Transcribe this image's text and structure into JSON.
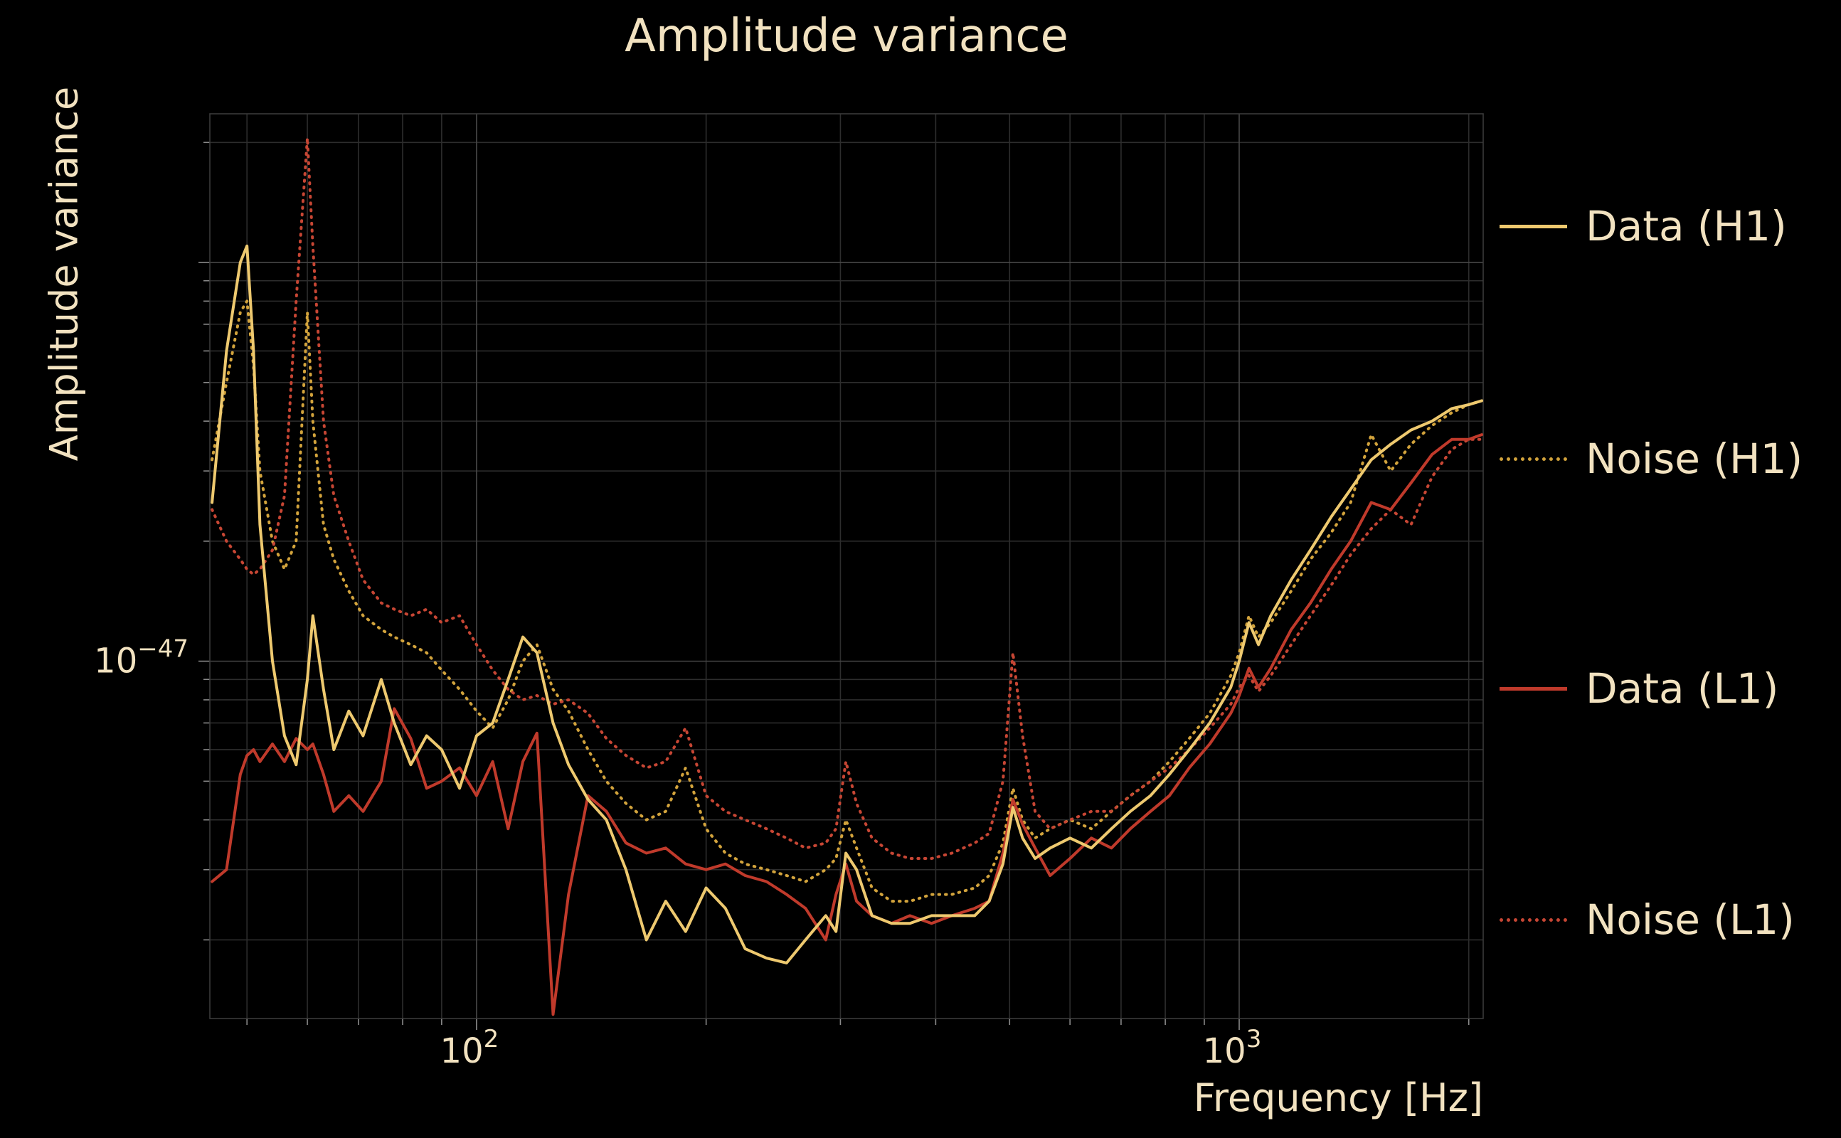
{
  "page": {
    "background": "#000000",
    "text_color": "#f2e2c0",
    "grid_major_color": "#474747",
    "grid_minor_color": "#2d2d2d",
    "tick_color": "#8a8a8a"
  },
  "chart_data": {
    "type": "line",
    "title": "Amplitude variance",
    "xlabel": "Frequency [Hz]",
    "ylabel": "Amplitude variance",
    "xscale": "log",
    "yscale": "log",
    "xlim": [
      44.7,
      2089
    ],
    "ylim": [
      1.27e-48,
      2.36e-46
    ],
    "grid": true,
    "legend_position": "right-outside",
    "xticks": [
      {
        "value": 100,
        "base": "10",
        "exp": "2"
      },
      {
        "value": 1000,
        "base": "10",
        "exp": "3"
      }
    ],
    "yticks": [
      {
        "value": 1e-47,
        "base": "10",
        "exp": "−47"
      }
    ],
    "x_minor_ticks": [
      50,
      60,
      70,
      80,
      90,
      200,
      300,
      400,
      500,
      600,
      700,
      800,
      900,
      2000
    ],
    "y_minor_mantissas": [
      2,
      3,
      4,
      5,
      6,
      7,
      8,
      9
    ],
    "y_decades": [
      -48,
      -47,
      -46
    ],
    "x": [
      45,
      47,
      49,
      50,
      51,
      52,
      54,
      56,
      58,
      60,
      61,
      63,
      65,
      68,
      71,
      75,
      78,
      82,
      86,
      90,
      95,
      100,
      105,
      110,
      115,
      120,
      126,
      132,
      140,
      148,
      157,
      167,
      177,
      188,
      200,
      212,
      225,
      240,
      255,
      270,
      287,
      296,
      305,
      315,
      330,
      350,
      370,
      395,
      420,
      450,
      470,
      490,
      505,
      520,
      540,
      565,
      600,
      640,
      680,
      720,
      765,
      810,
      860,
      915,
      975,
      1000,
      1030,
      1060,
      1100,
      1170,
      1240,
      1320,
      1400,
      1490,
      1580,
      1680,
      1790,
      1900,
      2000,
      2080
    ],
    "series": [
      {
        "name": "Noise (H1)",
        "color": "#d2a33c",
        "line": "dotted",
        "y": [
          3.2e-47,
          5e-47,
          7.5e-47,
          8e-47,
          5.5e-47,
          3e-47,
          2e-47,
          1.7e-47,
          2e-47,
          7.5e-47,
          4e-47,
          2.2e-47,
          1.8e-47,
          1.5e-47,
          1.3e-47,
          1.2e-47,
          1.15e-47,
          1.1e-47,
          1.05e-47,
          9.5e-48,
          8.5e-48,
          7.5e-48,
          6.8e-48,
          8e-48,
          1e-47,
          1.1e-47,
          8.5e-48,
          7.5e-48,
          6e-48,
          5e-48,
          4.4e-48,
          4e-48,
          4.2e-48,
          5.4e-48,
          3.8e-48,
          3.3e-48,
          3.1e-48,
          3e-48,
          2.9e-48,
          2.8e-48,
          3e-48,
          3.2e-48,
          4e-48,
          3.4e-48,
          2.7e-48,
          2.5e-48,
          2.5e-48,
          2.6e-48,
          2.6e-48,
          2.7e-48,
          2.9e-48,
          3.5e-48,
          4.8e-48,
          4e-48,
          3.6e-48,
          3.8e-48,
          4e-48,
          3.8e-48,
          4.2e-48,
          4.6e-48,
          5e-48,
          5.6e-48,
          6.4e-48,
          7.4e-48,
          9.2e-48,
          1.05e-47,
          1.3e-47,
          1.15e-47,
          1.25e-47,
          1.5e-47,
          1.8e-47,
          2.1e-47,
          2.5e-47,
          3.7e-47,
          3e-47,
          3.5e-47,
          3.9e-47,
          4.2e-47,
          4.4e-47,
          4.5e-47
        ]
      },
      {
        "name": "Noise (L1)",
        "color": "#c74634",
        "line": "dotted",
        "y": [
          2.4e-47,
          2e-47,
          1.8e-47,
          1.7e-47,
          1.65e-47,
          1.7e-47,
          1.9e-47,
          2.6e-47,
          8e-47,
          2.05e-46,
          1.1e-46,
          4e-47,
          2.6e-47,
          2e-47,
          1.6e-47,
          1.4e-47,
          1.35e-47,
          1.3e-47,
          1.35e-47,
          1.25e-47,
          1.3e-47,
          1.1e-47,
          9.5e-48,
          8.5e-48,
          8e-48,
          8.2e-48,
          7.8e-48,
          8e-48,
          7.4e-48,
          6.4e-48,
          5.8e-48,
          5.4e-48,
          5.6e-48,
          6.8e-48,
          4.6e-48,
          4.2e-48,
          4e-48,
          3.8e-48,
          3.6e-48,
          3.4e-48,
          3.5e-48,
          3.8e-48,
          5.6e-48,
          4.4e-48,
          3.6e-48,
          3.3e-48,
          3.2e-48,
          3.2e-48,
          3.3e-48,
          3.5e-48,
          3.7e-48,
          5e-48,
          1.05e-47,
          6.5e-48,
          4.2e-48,
          3.8e-48,
          4e-48,
          4.2e-48,
          4.2e-48,
          4.6e-48,
          5e-48,
          5.4e-48,
          6e-48,
          6.8e-48,
          7.8e-48,
          8.6e-48,
          9.2e-48,
          8.4e-48,
          9.2e-48,
          1.1e-47,
          1.3e-47,
          1.55e-47,
          1.85e-47,
          2.15e-47,
          2.4e-47,
          2.2e-47,
          2.9e-47,
          3.4e-47,
          3.6e-47,
          3.6e-47
        ]
      },
      {
        "name": "Data (L1)",
        "color": "#c03a2b",
        "line": "solid",
        "y": [
          2.8e-48,
          3e-48,
          5.2e-48,
          5.8e-48,
          6e-48,
          5.6e-48,
          6.2e-48,
          5.6e-48,
          6.4e-48,
          6e-48,
          6.2e-48,
          5.2e-48,
          4.2e-48,
          4.6e-48,
          4.2e-48,
          5e-48,
          7.6e-48,
          6.4e-48,
          4.8e-48,
          5e-48,
          5.4e-48,
          4.6e-48,
          5.6e-48,
          3.8e-48,
          5.6e-48,
          6.6e-48,
          1.3e-48,
          2.6e-48,
          4.6e-48,
          4.2e-48,
          3.5e-48,
          3.3e-48,
          3.4e-48,
          3.1e-48,
          3e-48,
          3.1e-48,
          2.9e-48,
          2.8e-48,
          2.6e-48,
          2.4e-48,
          2e-48,
          2.6e-48,
          3.1e-48,
          2.5e-48,
          2.3e-48,
          2.2e-48,
          2.3e-48,
          2.2e-48,
          2.3e-48,
          2.4e-48,
          2.5e-48,
          3.3e-48,
          4.5e-48,
          3.9e-48,
          3.4e-48,
          2.9e-48,
          3.2e-48,
          3.6e-48,
          3.4e-48,
          3.8e-48,
          4.2e-48,
          4.6e-48,
          5.4e-48,
          6.2e-48,
          7.4e-48,
          8.2e-48,
          9.6e-48,
          8.6e-48,
          9.6e-48,
          1.2e-47,
          1.4e-47,
          1.7e-47,
          2e-47,
          2.5e-47,
          2.4e-47,
          2.8e-47,
          3.3e-47,
          3.6e-47,
          3.6e-47,
          3.7e-47
        ]
      },
      {
        "name": "Data (H1)",
        "color": "#eec96f",
        "line": "solid",
        "y": [
          2.5e-47,
          6e-47,
          1e-46,
          1.1e-46,
          6e-47,
          2.2e-47,
          1e-47,
          6.5e-48,
          5.5e-48,
          9e-48,
          1.3e-47,
          8.5e-48,
          6e-48,
          7.5e-48,
          6.5e-48,
          9e-48,
          7e-48,
          5.5e-48,
          6.5e-48,
          6e-48,
          4.8e-48,
          6.5e-48,
          7e-48,
          9e-48,
          1.15e-47,
          1.05e-47,
          7e-48,
          5.5e-48,
          4.5e-48,
          4e-48,
          3e-48,
          2e-48,
          2.5e-48,
          2.1e-48,
          2.7e-48,
          2.4e-48,
          1.9e-48,
          1.8e-48,
          1.75e-48,
          2e-48,
          2.3e-48,
          2.1e-48,
          3.3e-48,
          3e-48,
          2.3e-48,
          2.2e-48,
          2.2e-48,
          2.3e-48,
          2.3e-48,
          2.3e-48,
          2.5e-48,
          3.1e-48,
          4.3e-48,
          3.6e-48,
          3.2e-48,
          3.4e-48,
          3.6e-48,
          3.4e-48,
          3.8e-48,
          4.2e-48,
          4.6e-48,
          5.2e-48,
          6e-48,
          7e-48,
          8.6e-48,
          1e-47,
          1.25e-47,
          1.1e-47,
          1.3e-47,
          1.6e-47,
          1.9e-47,
          2.3e-47,
          2.7e-47,
          3.2e-47,
          3.5e-47,
          3.8e-47,
          4e-47,
          4.3e-47,
          4.4e-47,
          4.5e-47
        ]
      }
    ],
    "legend_order": [
      "Data (H1)",
      "Noise (H1)",
      "Data (L1)",
      "Noise (L1)"
    ]
  },
  "legend": {
    "entries": [
      {
        "label": "Data (H1)",
        "style": "solid",
        "color": "#eec96f",
        "series_index": 3
      },
      {
        "label": "Noise (H1)",
        "style": "dotted",
        "color": "#d2a33c",
        "series_index": 0
      },
      {
        "label": "Data (L1)",
        "style": "solid",
        "color": "#c03a2b",
        "series_index": 2
      },
      {
        "label": "Noise (L1)",
        "style": "dotted",
        "color": "#c74634",
        "series_index": 1
      }
    ]
  }
}
